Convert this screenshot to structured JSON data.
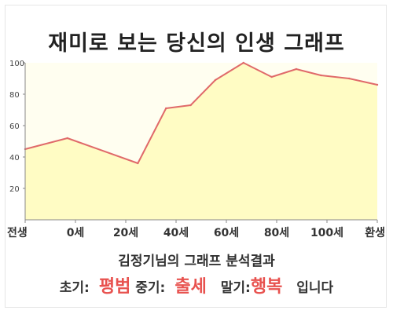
{
  "chart_data": {
    "type": "area",
    "title": "재미로 보는 당신의 인생 그래프",
    "x": [
      -12,
      0,
      20,
      28,
      35,
      42,
      50,
      58,
      65,
      72,
      80,
      88
    ],
    "values": [
      45,
      52,
      36,
      71,
      73,
      89,
      100,
      91,
      96,
      92,
      90,
      86
    ],
    "x_tick_labels": [
      "전생",
      "0세",
      "20세",
      "40세",
      "60세",
      "80세",
      "100세",
      "환생"
    ],
    "y_ticks": [
      20,
      40,
      60,
      80,
      100
    ],
    "ylim": [
      0,
      100
    ],
    "grid": false,
    "colors": {
      "line": "#e06a6a",
      "fill": "#fffcc4",
      "plot_bg": "#fffef0",
      "axis": "#888888"
    }
  },
  "summary": {
    "line1": "김정기님의 그래프 분석결과",
    "early_label": "초기:",
    "early_value": "평범",
    "mid_label": "중기:",
    "mid_value": "출세",
    "late_label": "말기:",
    "late_value": "행복",
    "suffix": "입니다"
  }
}
